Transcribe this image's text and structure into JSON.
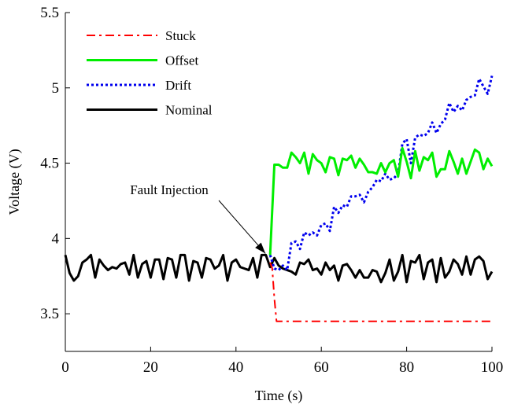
{
  "chart_data": {
    "type": "line",
    "title": "",
    "xlabel": "Time (s)",
    "ylabel": "Voltage (V)",
    "xlim": [
      0,
      100
    ],
    "ylim": [
      3.25,
      5.5
    ],
    "xticks": [
      "0",
      "20",
      "40",
      "60",
      "80",
      "100"
    ],
    "yticks": [
      "3.5",
      "4",
      "4.5",
      "5",
      "5.5"
    ],
    "ytick_values": [
      3.5,
      4.0,
      4.5,
      5.0,
      5.5
    ],
    "xtick_values": [
      0,
      20,
      40,
      60,
      80,
      100
    ],
    "grid": false,
    "legend_position": "top-left",
    "annotation": {
      "text": "Fault Injection",
      "x": 48,
      "y": 3.89
    },
    "series": [
      {
        "name": "Stuck",
        "color": "#ff0000",
        "style": "dashdot",
        "x": [
          48,
          48.5,
          49,
          49.5,
          100
        ],
        "y": [
          3.84,
          3.8,
          3.6,
          3.45,
          3.45
        ]
      },
      {
        "name": "Offset",
        "color": "#00ee00",
        "style": "solid",
        "x": [
          48,
          49,
          50,
          51,
          52,
          53,
          54,
          55,
          56,
          57,
          58,
          59,
          60,
          61,
          62,
          63,
          64,
          65,
          66,
          67,
          68,
          69,
          70,
          71,
          72,
          73,
          74,
          75,
          76,
          77,
          78,
          79,
          80,
          81,
          82,
          83,
          84,
          85,
          86,
          87,
          88,
          89,
          90,
          91,
          92,
          93,
          94,
          95,
          96,
          97,
          98,
          99,
          100
        ],
        "y": [
          3.89,
          4.49,
          4.49,
          4.47,
          4.47,
          4.57,
          4.54,
          4.5,
          4.57,
          4.43,
          4.56,
          4.52,
          4.5,
          4.44,
          4.54,
          4.53,
          4.42,
          4.53,
          4.52,
          4.55,
          4.47,
          4.53,
          4.49,
          4.44,
          4.44,
          4.43,
          4.5,
          4.44,
          4.5,
          4.52,
          4.41,
          4.6,
          4.51,
          4.4,
          4.58,
          4.45,
          4.54,
          4.52,
          4.57,
          4.41,
          4.46,
          4.46,
          4.58,
          4.51,
          4.43,
          4.53,
          4.43,
          4.51,
          4.59,
          4.57,
          4.46,
          4.53,
          4.48
        ]
      },
      {
        "name": "Drift",
        "color": "#0000ee",
        "style": "dotted",
        "x": [
          48,
          49,
          50,
          51,
          52,
          53,
          54,
          55,
          56,
          57,
          58,
          59,
          60,
          61,
          62,
          63,
          64,
          65,
          66,
          67,
          68,
          69,
          70,
          71,
          72,
          73,
          74,
          75,
          76,
          77,
          78,
          79,
          80,
          81,
          82,
          83,
          84,
          85,
          86,
          87,
          88,
          89,
          90,
          91,
          92,
          93,
          94,
          95,
          96,
          97,
          98,
          99,
          100
        ],
        "y": [
          3.89,
          3.8,
          3.79,
          3.82,
          3.79,
          3.97,
          3.98,
          3.93,
          4.04,
          4.02,
          4.04,
          4.02,
          4.09,
          4.1,
          4.05,
          4.21,
          4.17,
          4.22,
          4.21,
          4.28,
          4.28,
          4.29,
          4.24,
          4.31,
          4.34,
          4.39,
          4.38,
          4.43,
          4.39,
          4.4,
          4.43,
          4.63,
          4.66,
          4.5,
          4.67,
          4.69,
          4.68,
          4.7,
          4.77,
          4.7,
          4.76,
          4.79,
          4.9,
          4.84,
          4.88,
          4.85,
          4.92,
          4.94,
          4.95,
          5.06,
          5.01,
          4.96,
          5.08
        ]
      },
      {
        "name": "Nominal",
        "color": "#000000",
        "style": "solid",
        "x": [
          0,
          1,
          2,
          3,
          4,
          5,
          6,
          7,
          8,
          9,
          10,
          11,
          12,
          13,
          14,
          15,
          16,
          17,
          18,
          19,
          20,
          21,
          22,
          23,
          24,
          25,
          26,
          27,
          28,
          29,
          30,
          31,
          32,
          33,
          34,
          35,
          36,
          37,
          38,
          39,
          40,
          41,
          42,
          43,
          44,
          45,
          46,
          47,
          48,
          49,
          50,
          51,
          52,
          53,
          54,
          55,
          56,
          57,
          58,
          59,
          60,
          61,
          62,
          63,
          64,
          65,
          66,
          67,
          68,
          69,
          70,
          71,
          72,
          73,
          74,
          75,
          76,
          77,
          78,
          79,
          80,
          81,
          82,
          83,
          84,
          85,
          86,
          87,
          88,
          89,
          90,
          91,
          92,
          93,
          94,
          95,
          96,
          97,
          98,
          99,
          100
        ],
        "y": [
          3.89,
          3.77,
          3.72,
          3.75,
          3.84,
          3.86,
          3.89,
          3.74,
          3.86,
          3.82,
          3.79,
          3.81,
          3.8,
          3.83,
          3.84,
          3.76,
          3.89,
          3.74,
          3.83,
          3.85,
          3.74,
          3.86,
          3.86,
          3.73,
          3.87,
          3.86,
          3.74,
          3.89,
          3.89,
          3.72,
          3.85,
          3.84,
          3.74,
          3.87,
          3.86,
          3.8,
          3.82,
          3.89,
          3.72,
          3.84,
          3.86,
          3.81,
          3.8,
          3.79,
          3.87,
          3.74,
          3.89,
          3.89,
          3.81,
          3.87,
          3.82,
          3.8,
          3.79,
          3.78,
          3.76,
          3.84,
          3.83,
          3.86,
          3.79,
          3.8,
          3.76,
          3.84,
          3.79,
          3.82,
          3.72,
          3.82,
          3.83,
          3.79,
          3.74,
          3.79,
          3.74,
          3.74,
          3.79,
          3.78,
          3.71,
          3.77,
          3.86,
          3.72,
          3.78,
          3.89,
          3.71,
          3.85,
          3.84,
          3.89,
          3.73,
          3.84,
          3.86,
          3.71,
          3.87,
          3.74,
          3.78,
          3.86,
          3.83,
          3.76,
          3.88,
          3.76,
          3.86,
          3.88,
          3.85,
          3.73,
          3.78
        ]
      }
    ]
  }
}
